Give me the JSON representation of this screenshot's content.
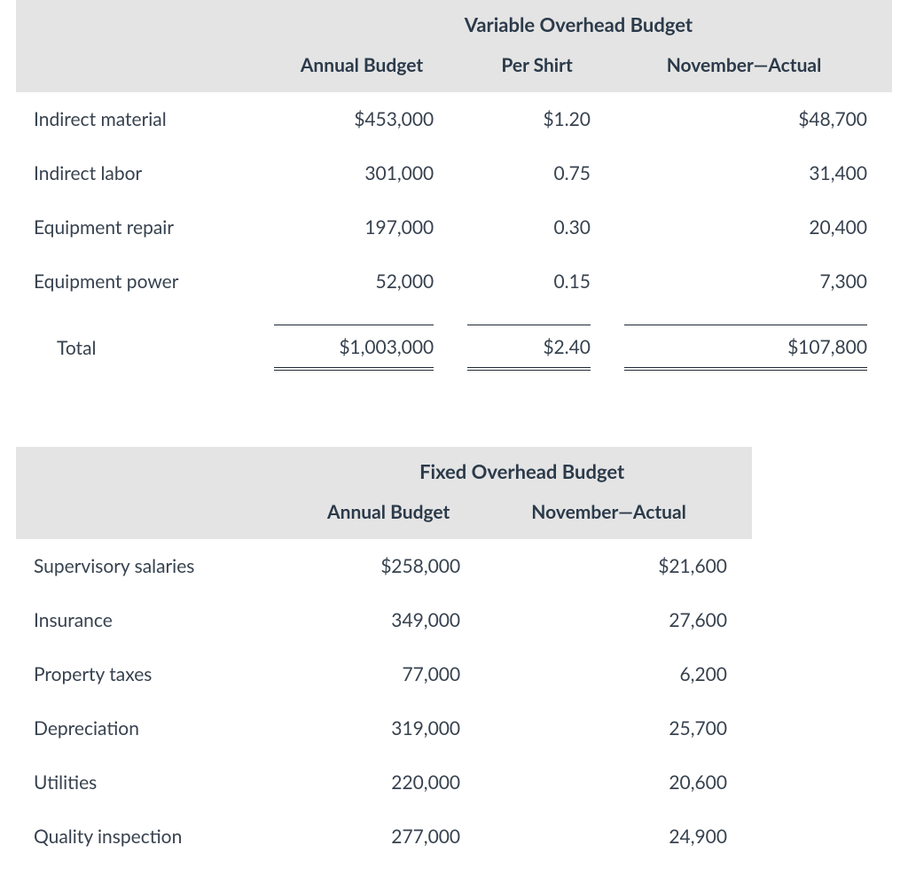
{
  "colors": {
    "header_bg": "#e4e4e4",
    "text": "#37424f",
    "heading_text": "#2b3a4a",
    "rule": "#1f2a36",
    "page_bg": "#ffffff"
  },
  "typography": {
    "body_fontsize_pt": 16,
    "heading_fontsize_pt": 17,
    "heading_weight": 700
  },
  "variable_overhead": {
    "title": "Variable Overhead Budget",
    "columns": [
      "Annual Budget",
      "Per Shirt",
      "November—Actual"
    ],
    "rows": [
      {
        "label": "Indirect material",
        "annual": "$453,000",
        "per_shirt": "$1.20",
        "nov_actual": "$48,700"
      },
      {
        "label": "Indirect labor",
        "annual": "301,000",
        "per_shirt": "0.75",
        "nov_actual": "31,400"
      },
      {
        "label": "Equipment repair",
        "annual": "197,000",
        "per_shirt": "0.30",
        "nov_actual": "20,400"
      },
      {
        "label": "Equipment power",
        "annual": "52,000",
        "per_shirt": "0.15",
        "nov_actual": "7,300"
      }
    ],
    "total": {
      "label": "Total",
      "annual": "$1,003,000",
      "per_shirt": "$2.40",
      "nov_actual": "$107,800"
    }
  },
  "fixed_overhead": {
    "title": "Fixed Overhead Budget",
    "columns": [
      "Annual Budget",
      "November—Actual"
    ],
    "rows": [
      {
        "label": "Supervisory salaries",
        "annual": "$258,000",
        "nov_actual": "$21,600"
      },
      {
        "label": "Insurance",
        "annual": "349,000",
        "nov_actual": "27,600"
      },
      {
        "label": "Property taxes",
        "annual": "77,000",
        "nov_actual": "6,200"
      },
      {
        "label": "Depreciation",
        "annual": "319,000",
        "nov_actual": "25,700"
      },
      {
        "label": "Utilities",
        "annual": "220,000",
        "nov_actual": "20,600"
      },
      {
        "label": "Quality inspection",
        "annual": "277,000",
        "nov_actual": "24,900"
      }
    ]
  }
}
